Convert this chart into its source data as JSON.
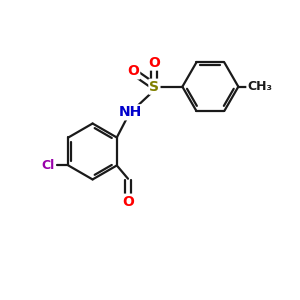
{
  "bg_color": "#ffffff",
  "bond_color": "#1a1a1a",
  "bond_width": 1.6,
  "atom_colors": {
    "O": "#ff0000",
    "N": "#0000cc",
    "S": "#808000",
    "Cl": "#9900aa",
    "C": "#1a1a1a"
  },
  "font_sizes": {
    "O": 10,
    "N": 10,
    "S": 10,
    "Cl": 9,
    "CH3": 9,
    "NH": 10
  },
  "figsize": [
    3.0,
    3.0
  ],
  "dpi": 100,
  "xlim": [
    0,
    10
  ],
  "ylim": [
    0,
    10
  ]
}
